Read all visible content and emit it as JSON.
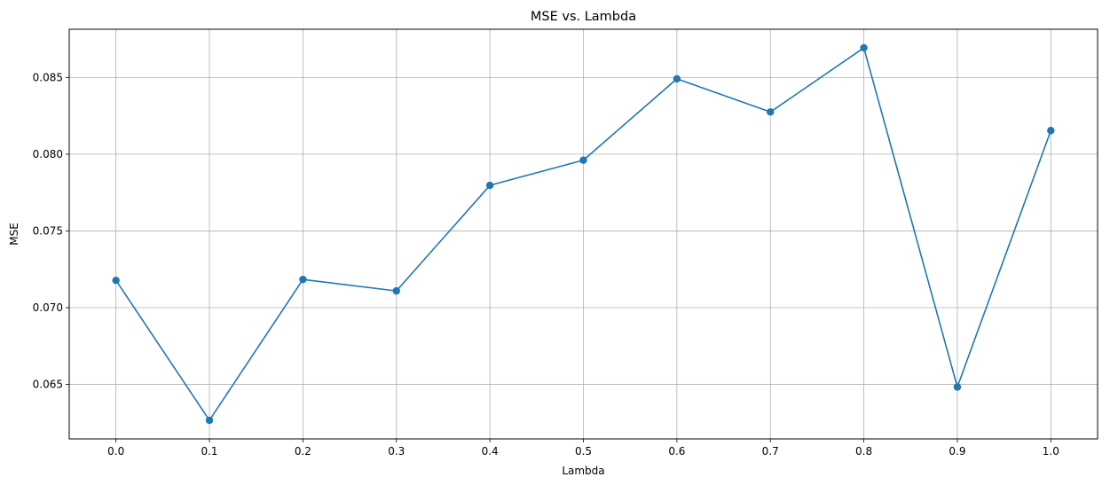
{
  "chart_data": {
    "type": "line",
    "title": "MSE vs. Lambda",
    "xlabel": "Lambda",
    "ylabel": "MSE",
    "x": [
      0.0,
      0.1,
      0.2,
      0.3,
      0.4,
      0.5,
      0.6,
      0.7,
      0.8,
      0.9,
      1.0
    ],
    "series": [
      {
        "values": [
          0.07178,
          0.06266,
          0.07184,
          0.07109,
          0.07797,
          0.07961,
          0.08491,
          0.08275,
          0.08693,
          0.06483,
          0.08154
        ],
        "color": "#1f77b4",
        "marker": "circle"
      }
    ],
    "xticks": [
      0.0,
      0.1,
      0.2,
      0.3,
      0.4,
      0.5,
      0.6,
      0.7,
      0.8,
      0.9,
      1.0
    ],
    "xtick_labels": [
      "0.0",
      "0.1",
      "0.2",
      "0.3",
      "0.4",
      "0.5",
      "0.6",
      "0.7",
      "0.8",
      "0.9",
      "1.0"
    ],
    "yticks": [
      0.065,
      0.07,
      0.075,
      0.08,
      0.085
    ],
    "ytick_labels": [
      "0.065",
      "0.070",
      "0.075",
      "0.080",
      "0.085"
    ],
    "xlim": [
      -0.05,
      1.05
    ],
    "ylim": [
      0.06145,
      0.08814
    ],
    "grid": true,
    "grid_color": "#b0b0b0",
    "line_color": "#1f77b4"
  }
}
